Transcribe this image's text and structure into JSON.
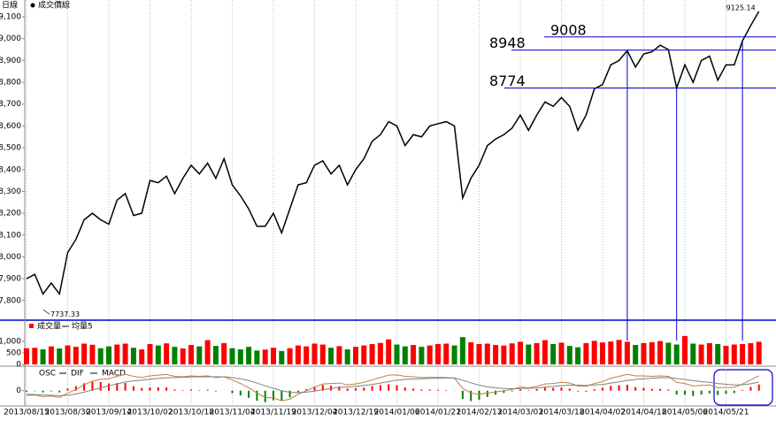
{
  "chart_data": [
    {
      "type": "line",
      "period_label": "日線",
      "series": [
        {
          "name": "成交價線",
          "color": "#000000",
          "values": [
            7900,
            7920,
            7830,
            7880,
            7830,
            8020,
            8080,
            8170,
            8200,
            8170,
            8150,
            8260,
            8290,
            8190,
            8200,
            8350,
            8340,
            8370,
            8290,
            8360,
            8420,
            8380,
            8430,
            8360,
            8450,
            8330,
            8280,
            8220,
            8140,
            8140,
            8200,
            8110,
            8220,
            8330,
            8340,
            8420,
            8440,
            8380,
            8420,
            8330,
            8400,
            8450,
            8530,
            8560,
            8620,
            8600,
            8510,
            8560,
            8550,
            8600,
            8610,
            8620,
            8600,
            8270,
            8360,
            8420,
            8510,
            8540,
            8560,
            8590,
            8650,
            8580,
            8650,
            8710,
            8690,
            8730,
            8690,
            8580,
            8650,
            8770,
            8790,
            8880,
            8900,
            8945,
            8870,
            8930,
            8940,
            8970,
            8950,
            8774,
            8880,
            8800,
            8900,
            8920,
            8810,
            8880,
            8880,
            8990,
            9060,
            9125.14
          ]
        }
      ],
      "categories": [
        "2013/08/15",
        null,
        null,
        null,
        null,
        "2013/08/30",
        null,
        null,
        null,
        null,
        "2013/09/14",
        null,
        null,
        null,
        null,
        "2013/10/02",
        null,
        null,
        null,
        null,
        "2013/10/18",
        null,
        null,
        null,
        null,
        "2013/11/04",
        null,
        null,
        null,
        null,
        "2013/11/19",
        null,
        null,
        null,
        null,
        "2013/12/04",
        null,
        null,
        null,
        null,
        "2013/12/19",
        null,
        null,
        null,
        null,
        "2014/01/06",
        null,
        null,
        null,
        null,
        "2014/01/21",
        null,
        null,
        null,
        null,
        "2014/02/13",
        null,
        null,
        null,
        null,
        "2014/03/03",
        null,
        null,
        null,
        null,
        "2014/03/18",
        null,
        null,
        null,
        null,
        "2014/04/02",
        null,
        null,
        null,
        null,
        "2014/04/18",
        null,
        null,
        null,
        null,
        "2014/05/06",
        null,
        null,
        null,
        null,
        "2014/05/21",
        null,
        null,
        null,
        null
      ],
      "ylim": [
        7710,
        9157
      ],
      "yticks": [
        {
          "value": 7800,
          "label": "7,800"
        },
        {
          "value": 7900,
          "label": "7,900"
        },
        {
          "value": 8000,
          "label": "8,000"
        },
        {
          "value": 8100,
          "label": "8,100"
        },
        {
          "value": 8200,
          "label": "8,200"
        },
        {
          "value": 8300,
          "label": "8,300"
        },
        {
          "value": 8400,
          "label": "8,400"
        },
        {
          "value": 8500,
          "label": "8,500"
        },
        {
          "value": 8600,
          "label": "8,600"
        },
        {
          "value": 8700,
          "label": "8,700"
        },
        {
          "value": 8800,
          "label": "8,800"
        },
        {
          "value": 8900,
          "label": "8,900"
        },
        {
          "value": 9000,
          "label": "9,000"
        },
        {
          "value": 9100,
          "label": "9,100"
        }
      ],
      "high_label": 9125.14,
      "high_color": "#ff0000",
      "low_label": 7737.33,
      "low_color": "#008000",
      "levels": [
        9008,
        8948,
        8774
      ],
      "level_color": "#0000cc"
    },
    {
      "type": "bar",
      "series": [
        {
          "name": "成交量",
          "values": [
            700,
            720,
            650,
            780,
            690,
            820,
            760,
            900,
            850,
            700,
            780,
            860,
            900,
            720,
            650,
            880,
            820,
            910,
            760,
            690,
            840,
            780,
            1050,
            800,
            920,
            700,
            650,
            760,
            600,
            640,
            720,
            580,
            700,
            820,
            780,
            900,
            860,
            720,
            790,
            650,
            760,
            820,
            880,
            930,
            1080,
            860,
            780,
            840,
            760,
            820,
            880,
            900,
            820,
            1180,
            960,
            880,
            900,
            840,
            820,
            910,
            980,
            860,
            920,
            1050,
            880,
            940,
            800,
            740,
            920,
            1020,
            950,
            990,
            1060,
            980,
            840,
            920,
            960,
            1010,
            940,
            860,
            1230,
            900,
            860,
            920,
            880,
            800,
            860,
            880,
            920,
            980
          ]
        }
      ],
      "ma_label": "均量5",
      "up_color": "#ff0000",
      "down_color": "#008000",
      "ylim": [
        0,
        1800
      ],
      "yticks": [
        0,
        500,
        {
          "value": 1000,
          "label": "1,000"
        }
      ]
    },
    {
      "type": "macd",
      "ylim": [
        -60,
        95
      ],
      "yticks": [
        0
      ],
      "up_color": "#ff0000",
      "down_color": "#008000",
      "series": [
        {
          "name": "OSC",
          "values": [
            -5,
            -2,
            -7,
            -3,
            -7,
            9,
            19,
            31,
            37,
            36,
            30,
            32,
            32,
            19,
            11,
            14,
            14,
            14,
            5,
            2,
            5,
            2,
            4,
            -3,
            0,
            -10,
            -20,
            -30,
            -42,
            -48,
            -40,
            -42,
            -28,
            -7,
            6,
            17,
            24,
            21,
            18,
            9,
            10,
            13,
            19,
            23,
            27,
            22,
            13,
            9,
            5,
            5,
            4,
            2,
            -1,
            -34,
            -43,
            -38,
            -26,
            -17,
            -9,
            -3,
            6,
            2,
            7,
            13,
            12,
            14,
            9,
            -3,
            -4,
            6,
            12,
            20,
            23,
            25,
            15,
            12,
            8,
            8,
            5,
            -16,
            -17,
            -22,
            -16,
            -11,
            -18,
            -13,
            -10,
            3,
            16,
            26
          ]
        },
        {
          "name": "DIF",
          "color": "#c08040",
          "values": [
            -20,
            -18,
            -25,
            -22,
            -28,
            -10,
            5,
            25,
            40,
            48,
            50,
            60,
            68,
            60,
            55,
            62,
            65,
            68,
            60,
            58,
            62,
            60,
            62,
            55,
            58,
            45,
            30,
            12,
            -10,
            -28,
            -30,
            -42,
            -35,
            -15,
            0,
            15,
            28,
            30,
            32,
            25,
            28,
            35,
            45,
            55,
            65,
            66,
            60,
            58,
            55,
            56,
            56,
            55,
            52,
            10,
            -10,
            -15,
            -10,
            -5,
            0,
            5,
            15,
            12,
            18,
            28,
            30,
            35,
            32,
            20,
            18,
            30,
            38,
            52,
            60,
            68,
            62,
            62,
            60,
            62,
            60,
            35,
            30,
            20,
            22,
            24,
            12,
            14,
            14,
            28,
            45,
            62
          ]
        },
        {
          "name": "MACD",
          "color": "#808080",
          "values": [
            -15,
            -16,
            -18,
            -19,
            -21,
            -19,
            -14,
            -6,
            3,
            12,
            20,
            28,
            36,
            41,
            44,
            48,
            51,
            54,
            55,
            56,
            57,
            58,
            58,
            58,
            58,
            55,
            50,
            42,
            32,
            20,
            10,
            0,
            -7,
            -8,
            -6,
            -2,
            4,
            9,
            14,
            16,
            18,
            22,
            26,
            32,
            38,
            44,
            47,
            49,
            50,
            51,
            52,
            53,
            53,
            44,
            33,
            23,
            16,
            12,
            9,
            8,
            9,
            10,
            11,
            15,
            18,
            21,
            23,
            23,
            22,
            24,
            26,
            32,
            37,
            43,
            47,
            50,
            52,
            54,
            55,
            51,
            47,
            42,
            38,
            35,
            30,
            27,
            24,
            25,
            29,
            36
          ]
        }
      ]
    }
  ]
}
